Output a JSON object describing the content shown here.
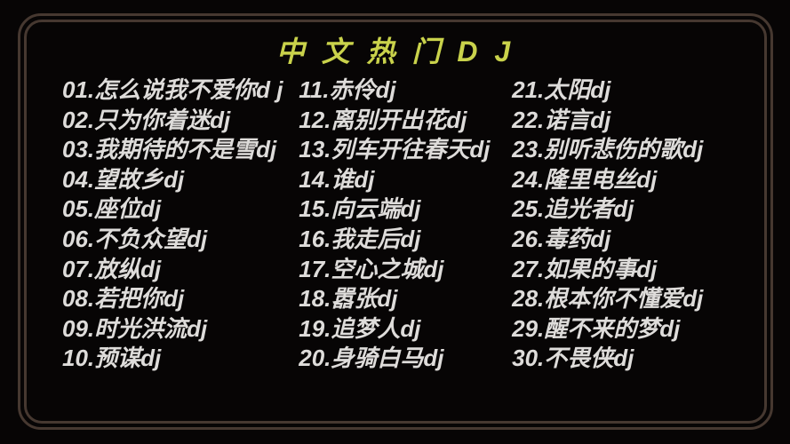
{
  "title": "中 文 热 门 D J",
  "colors": {
    "background": "#070505",
    "border": "#463830",
    "title": "#c9d24b",
    "text": "#dedcda"
  },
  "songs": [
    "01.怎么说我不爱你d j",
    "02.只为你着迷dj",
    "03.我期待的不是雪dj",
    "04.望故乡dj",
    "05.座位dj",
    "06.不负众望dj",
    "07.放纵dj",
    "08.若把你dj",
    "09.时光洪流dj",
    "10.预谋dj",
    "11.赤伶dj",
    "12.离别开出花dj",
    "13.列车开往春天dj",
    "14.谁dj",
    "15.向云端dj",
    "16.我走后dj",
    "17.空心之城dj",
    "18.嚣张dj",
    "19.追梦人dj",
    "20.身骑白马dj",
    "21.太阳dj",
    "22.诺言dj",
    "23.别听悲伤的歌dj",
    "24.隆里电丝dj",
    "25.追光者dj",
    "26.毒药dj",
    "27.如果的事dj",
    "28.根本你不懂爱dj",
    "29.醒不来的梦dj",
    "30.不畏侠dj"
  ]
}
